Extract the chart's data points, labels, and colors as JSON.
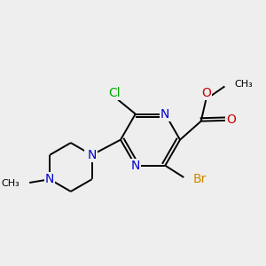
{
  "bg_color": "#eeeeee",
  "atom_colors": {
    "C": "#000000",
    "N": "#0000cc",
    "O": "#cc0000",
    "Cl": "#00aa00",
    "Br": "#cc8800",
    "H": "#000000"
  },
  "bond_color": "#000000",
  "font_size_atoms": 10,
  "font_size_small": 9
}
